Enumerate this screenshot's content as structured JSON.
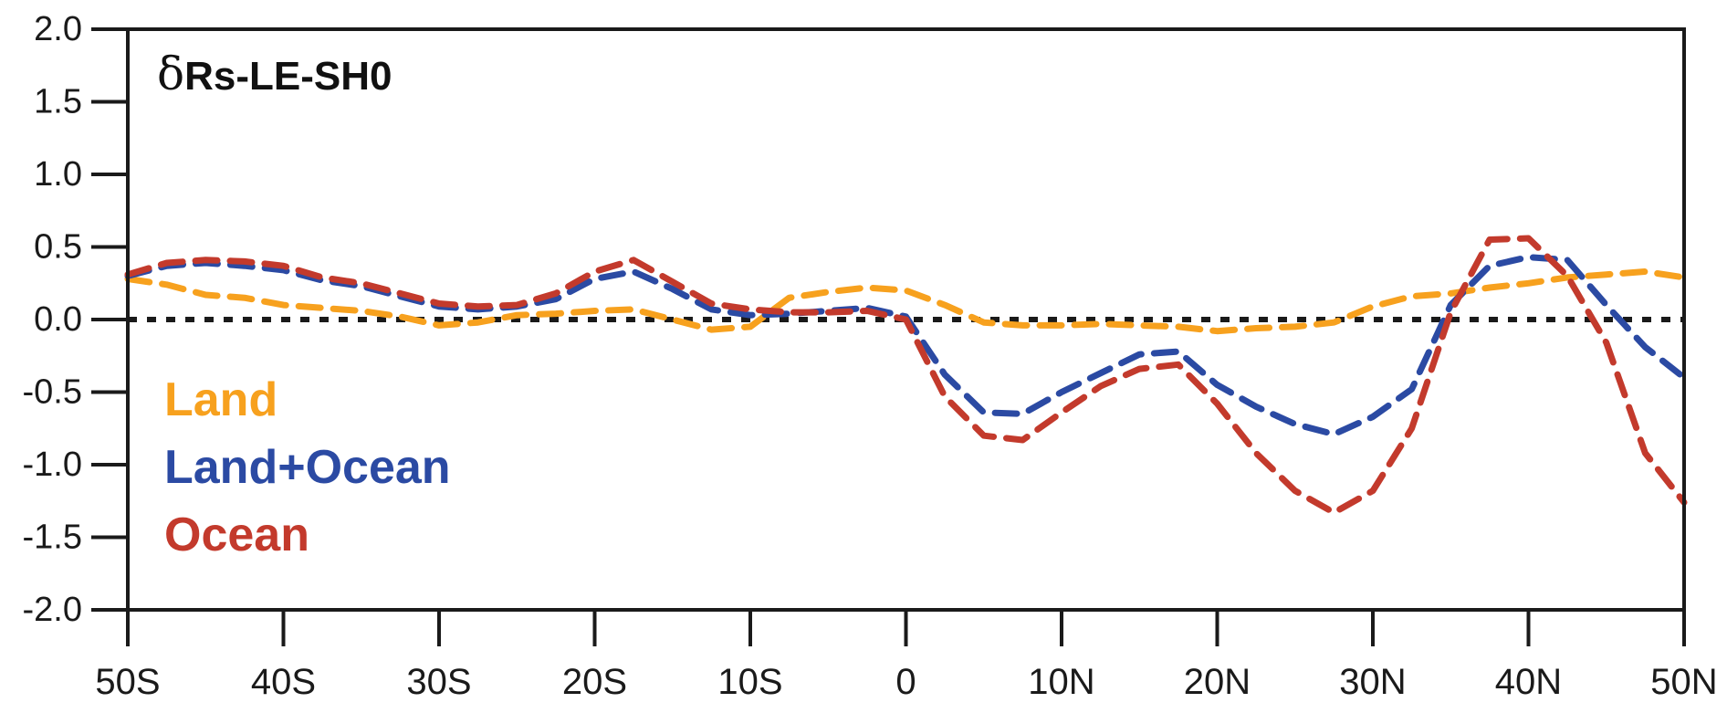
{
  "title": {
    "symbol": "δ",
    "label": "Rs-LE-SH0"
  },
  "colors": {
    "axis": "#1a1a1a",
    "zero_line": "#1a1a1a",
    "land": "#F7A11E",
    "land_ocean": "#2B4AA3",
    "ocean": "#C33A2C"
  },
  "chart_data": {
    "type": "line",
    "title": "δRs-LE-SH0",
    "xlabel": "",
    "ylabel": "",
    "xlim": [
      -50,
      50
    ],
    "ylim": [
      -2.0,
      2.0
    ],
    "grid": false,
    "zero_line": true,
    "line_style": "dashed",
    "x_tick_values": [
      -50,
      -40,
      -30,
      -20,
      -10,
      0,
      10,
      20,
      30,
      40,
      50
    ],
    "x_tick_labels": [
      "50S",
      "40S",
      "30S",
      "20S",
      "10S",
      "0",
      "10N",
      "20N",
      "30N",
      "40N",
      "50N"
    ],
    "y_tick_values": [
      2.0,
      1.5,
      1.0,
      0.5,
      0.0,
      -0.5,
      -1.0,
      -1.5,
      -2.0
    ],
    "y_tick_labels": [
      "2.0",
      "1.5",
      "1.0",
      "0.5",
      "0.0",
      "-0.5",
      "-1.0",
      "-1.5",
      "-2.0"
    ],
    "legend": {
      "position": "inside-left-middle"
    },
    "x": [
      -50,
      -47.5,
      -45,
      -42.5,
      -40,
      -37.5,
      -35,
      -32.5,
      -30,
      -27.5,
      -25,
      -22.5,
      -20,
      -17.5,
      -15,
      -12.5,
      -10,
      -7.5,
      -5,
      -2.5,
      0,
      2.5,
      5,
      7.5,
      10,
      12.5,
      15,
      17.5,
      20,
      22.5,
      25,
      27.5,
      30,
      32.5,
      35,
      37.5,
      40,
      42.5,
      45,
      47.5,
      50
    ],
    "series": [
      {
        "name": "Land",
        "color": "#F7A11E",
        "values": [
          0.28,
          0.24,
          0.17,
          0.15,
          0.1,
          0.08,
          0.06,
          0.02,
          -0.04,
          -0.02,
          0.03,
          0.04,
          0.06,
          0.07,
          0.0,
          -0.07,
          -0.05,
          0.15,
          0.19,
          0.22,
          0.2,
          0.1,
          -0.02,
          -0.04,
          -0.04,
          -0.03,
          -0.04,
          -0.05,
          -0.08,
          -0.06,
          -0.05,
          -0.02,
          0.09,
          0.16,
          0.18,
          0.22,
          0.25,
          0.29,
          0.31,
          0.33,
          0.29
        ]
      },
      {
        "name": "Land+Ocean",
        "color": "#2B4AA3",
        "values": [
          0.3,
          0.37,
          0.39,
          0.37,
          0.34,
          0.27,
          0.23,
          0.16,
          0.09,
          0.07,
          0.09,
          0.14,
          0.28,
          0.33,
          0.21,
          0.07,
          0.03,
          0.04,
          0.06,
          0.08,
          0.02,
          -0.38,
          -0.64,
          -0.65,
          -0.5,
          -0.37,
          -0.24,
          -0.22,
          -0.45,
          -0.6,
          -0.72,
          -0.79,
          -0.67,
          -0.48,
          0.1,
          0.37,
          0.43,
          0.41,
          0.1,
          -0.19,
          -0.4
        ]
      },
      {
        "name": "Ocean",
        "color": "#C33A2C",
        "values": [
          0.31,
          0.39,
          0.41,
          0.4,
          0.37,
          0.29,
          0.25,
          0.18,
          0.11,
          0.09,
          0.1,
          0.18,
          0.33,
          0.41,
          0.26,
          0.11,
          0.07,
          0.05,
          0.05,
          0.06,
          0.0,
          -0.53,
          -0.8,
          -0.83,
          -0.64,
          -0.46,
          -0.34,
          -0.31,
          -0.58,
          -0.92,
          -1.18,
          -1.33,
          -1.18,
          -0.75,
          0.05,
          0.55,
          0.56,
          0.3,
          -0.16,
          -0.92,
          -1.26
        ]
      }
    ]
  }
}
